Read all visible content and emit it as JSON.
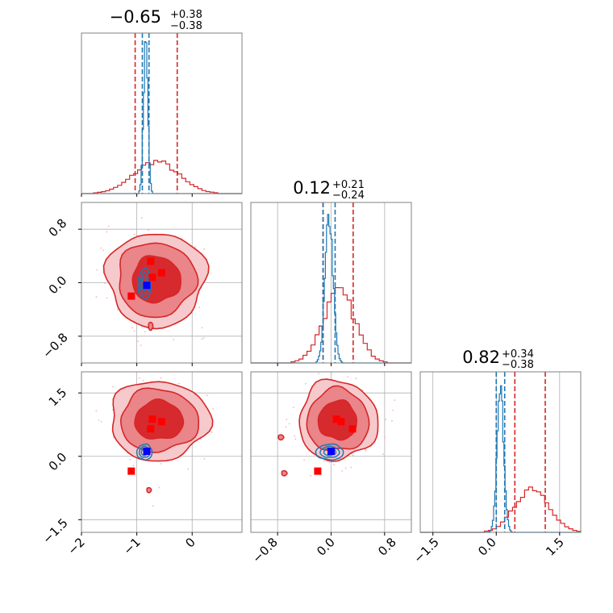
{
  "chart_data": {
    "type": "corner",
    "colors": {
      "posterior_a": "#d62728",
      "posterior_b": "#1f77b4",
      "marker_red": "#ff0000",
      "marker_blue": "#0000ff",
      "grid": "#b0b0b0",
      "frame": "#808080"
    },
    "parameters": [
      {
        "title_value": "−0.65",
        "title_plus": "+0.38",
        "title_minus": "−0.38",
        "range": [
          -2.0,
          0.9
        ],
        "ticks": [
          -2,
          -1,
          0
        ],
        "tick_labels": [
          "−2",
          "−1",
          "0"
        ]
      },
      {
        "title_value": "0.12",
        "title_plus": "+0.21",
        "title_minus": "−0.24",
        "range": [
          -1.2,
          1.2
        ],
        "ticks": [
          -0.8,
          0.0,
          0.8
        ],
        "tick_labels": [
          "−0.8",
          "0.0",
          "0.8"
        ]
      },
      {
        "title_value": "0.82",
        "title_plus": "+0.34",
        "title_minus": "−0.38",
        "range": [
          -1.8,
          2.0
        ],
        "ticks": [
          -1.5,
          0.0,
          1.5
        ],
        "tick_labels": [
          "−1.5",
          "0.0",
          "1.5"
        ]
      }
    ],
    "marginals": [
      {
        "red": {
          "center": -0.65,
          "sigma": 0.4,
          "peak": 0.2,
          "quantiles": [
            -1.03,
            -0.27
          ]
        },
        "blue": {
          "center": -0.84,
          "sigma": 0.04,
          "peak": 0.91,
          "quantiles": [
            -0.9,
            -0.78
          ]
        }
      },
      {
        "red": {
          "center": 0.12,
          "sigma": 0.24,
          "peak": 0.44,
          "quantiles": [
            -0.12,
            0.33
          ]
        },
        "blue": {
          "center": -0.03,
          "sigma": 0.06,
          "peak": 0.9,
          "quantiles": [
            -0.12,
            0.06
          ]
        }
      },
      {
        "red": {
          "center": 0.85,
          "sigma": 0.4,
          "peak": 0.28,
          "quantiles": [
            0.44,
            1.16
          ]
        },
        "blue": {
          "center": 0.1,
          "sigma": 0.08,
          "peak": 0.88,
          "quantiles": [
            0.0,
            0.2
          ]
        }
      }
    ],
    "joint": [
      {
        "params": [
          0,
          1
        ],
        "red_center": [
          -0.65,
          0.05
        ],
        "red_sigma": [
          0.38,
          0.3
        ],
        "blue_center": [
          -0.86,
          -0.02
        ],
        "blue_sigma": [
          0.05,
          0.1
        ],
        "red_markers": [
          [
            -0.75,
            0.32
          ],
          [
            -0.55,
            0.15
          ],
          [
            -0.72,
            0.08
          ],
          [
            -1.1,
            -0.2
          ]
        ],
        "blue_markers": [
          [
            -0.82,
            -0.04
          ]
        ],
        "outlier_contours": [
          [
            -0.75,
            -0.65
          ]
        ]
      },
      {
        "params": [
          0,
          2
        ],
        "red_center": [
          -0.6,
          0.85
        ],
        "red_sigma": [
          0.38,
          0.4
        ],
        "blue_center": [
          -0.86,
          0.1
        ],
        "blue_sigma": [
          0.06,
          0.08
        ],
        "red_markers": [
          [
            -0.72,
            0.88
          ],
          [
            -0.55,
            0.82
          ],
          [
            -0.75,
            0.65
          ],
          [
            -1.1,
            -0.35
          ]
        ],
        "blue_markers": [
          [
            -0.82,
            0.12
          ]
        ],
        "outlier_contours": [
          [
            -0.78,
            -0.8
          ]
        ]
      },
      {
        "params": [
          1,
          2
        ],
        "red_center": [
          0.1,
          0.85
        ],
        "red_sigma": [
          0.25,
          0.4
        ],
        "blue_center": [
          -0.02,
          0.1
        ],
        "blue_sigma": [
          0.09,
          0.08
        ],
        "red_markers": [
          [
            0.08,
            0.88
          ],
          [
            0.15,
            0.82
          ],
          [
            0.32,
            0.65
          ],
          [
            -0.2,
            -0.35
          ]
        ],
        "blue_markers": [
          [
            0.0,
            0.12
          ]
        ],
        "outlier_contours": [
          [
            -0.75,
            0.45
          ],
          [
            -0.7,
            -0.4
          ]
        ]
      }
    ],
    "xlabel": "",
    "ylabel": "",
    "grid": true,
    "legend": "none"
  }
}
